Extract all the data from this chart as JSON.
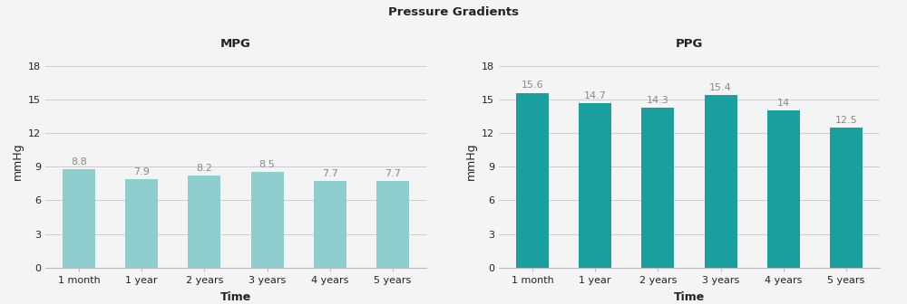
{
  "title": "Pressure Gradients",
  "categories": [
    "1 month",
    "1 year",
    "2 years",
    "3 years",
    "4 years",
    "5 years"
  ],
  "mpg_values": [
    8.8,
    7.9,
    8.2,
    8.5,
    7.7,
    7.7
  ],
  "ppg_values": [
    15.6,
    14.7,
    14.3,
    15.4,
    14.0,
    12.5
  ],
  "mpg_labels": [
    "8.8",
    "7.9",
    "8.2",
    "8.5",
    "7.7",
    "7.7"
  ],
  "ppg_labels": [
    "15.6",
    "14.7",
    "14.3",
    "15.4",
    "14",
    "12.5"
  ],
  "mpg_color": "#8ecece",
  "ppg_color": "#1a9e9e",
  "mpg_title": "MPG",
  "ppg_title": "PPG",
  "xlabel": "Time",
  "ylabel": "mmHg",
  "ylim": [
    0,
    19
  ],
  "yticks": [
    0,
    3,
    6,
    9,
    12,
    15,
    18
  ],
  "title_fontsize": 9.5,
  "subtitle_fontsize": 9.5,
  "label_fontsize": 8,
  "axis_label_fontsize": 9,
  "tick_fontsize": 8,
  "bg_color": "#f4f4f4",
  "bar_label_color": "#888888",
  "grid_color": "#cccccc",
  "spine_color": "#bbbbbb",
  "text_color": "#222222"
}
